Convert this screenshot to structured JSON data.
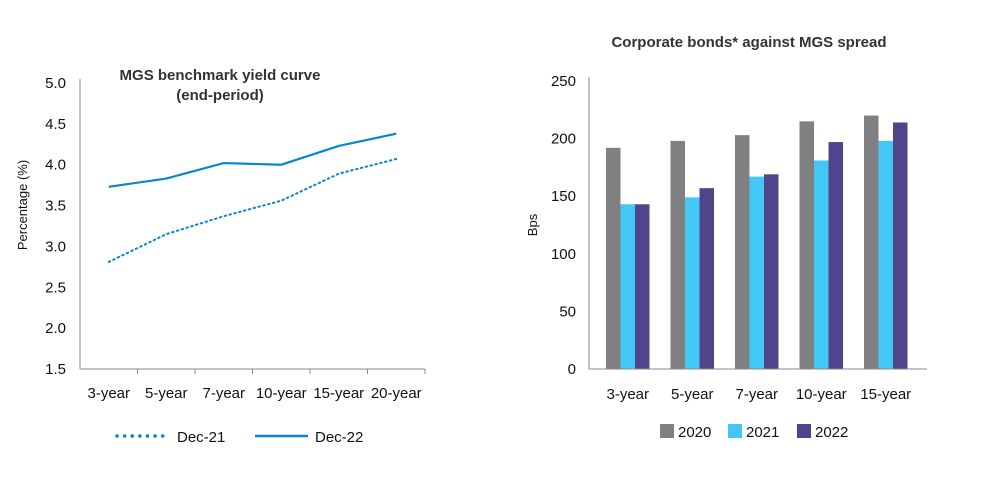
{
  "chart_data": [
    {
      "type": "line",
      "title": [
        "MGS benchmark yield curve",
        "(end-period)"
      ],
      "xlabel": "",
      "ylabel": "Percentage (%)",
      "categories": [
        "3-year",
        "5-year",
        "7-year",
        "10-year",
        "15-year",
        "20-year"
      ],
      "ylim": [
        1.5,
        5.0
      ],
      "yticks": [
        "1.5",
        "2.0",
        "2.5",
        "3.0",
        "3.5",
        "4.0",
        "4.5",
        "5.0"
      ],
      "series": [
        {
          "name": "Dec-21",
          "style": "dotted",
          "color": "#0a86d0",
          "values": [
            2.81,
            3.15,
            3.37,
            3.56,
            3.89,
            4.07
          ]
        },
        {
          "name": "Dec-22",
          "style": "solid",
          "color": "#0a86d0",
          "values": [
            3.73,
            3.83,
            4.02,
            4.0,
            4.23,
            4.38
          ]
        }
      ],
      "legend": "bottom",
      "grid": false
    },
    {
      "type": "bar",
      "title": "Corporate bonds* against MGS spread",
      "xlabel": "",
      "ylabel": "Bps",
      "categories": [
        "3-year",
        "5-year",
        "7-year",
        "10-year",
        "15-year"
      ],
      "ylim": [
        0,
        250
      ],
      "yticks": [
        "0",
        "50",
        "100",
        "150",
        "200",
        "250"
      ],
      "series": [
        {
          "name": "2020",
          "color": "#808083",
          "values": [
            192,
            198,
            203,
            215,
            220
          ]
        },
        {
          "name": "2021",
          "color": "#43c8f5",
          "values": [
            143,
            149,
            167,
            181,
            198
          ]
        },
        {
          "name": "2022",
          "color": "#52448c",
          "values": [
            143,
            157,
            169,
            197,
            214
          ]
        }
      ],
      "legend": "bottom",
      "grid": false
    }
  ]
}
